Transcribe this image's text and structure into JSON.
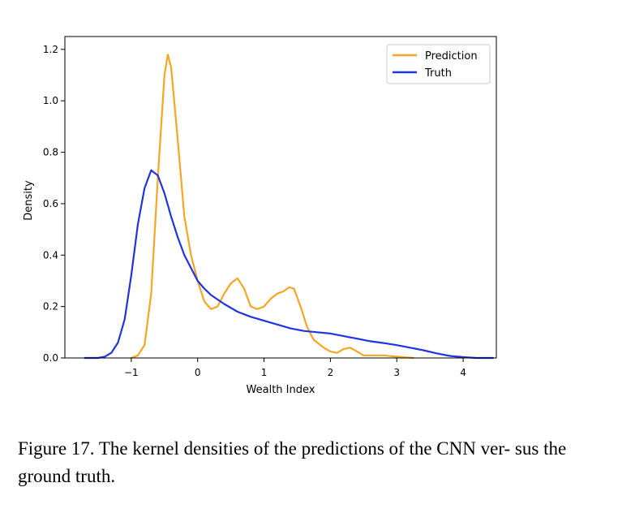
{
  "chart_data": {
    "type": "line",
    "xlabel": "Wealth Index",
    "ylabel": "Density",
    "xlim": [
      -2.0,
      4.5
    ],
    "ylim": [
      0,
      1.25
    ],
    "xticks": [
      -1,
      0,
      1,
      2,
      3,
      4
    ],
    "yticks": [
      0.0,
      0.2,
      0.4,
      0.6,
      0.8,
      1.0,
      1.2
    ],
    "xtick_labels": [
      "−1",
      "0",
      "1",
      "2",
      "3",
      "4"
    ],
    "ytick_labels": [
      "0.0",
      "0.2",
      "0.4",
      "0.6",
      "0.8",
      "1.0",
      "1.2"
    ],
    "legend_position": "top-right",
    "grid": false,
    "series": [
      {
        "name": "Prediction",
        "color": "#f5a623",
        "points": [
          [
            -1.0,
            0.0
          ],
          [
            -0.9,
            0.01
          ],
          [
            -0.8,
            0.05
          ],
          [
            -0.7,
            0.25
          ],
          [
            -0.6,
            0.7
          ],
          [
            -0.5,
            1.1
          ],
          [
            -0.45,
            1.18
          ],
          [
            -0.4,
            1.13
          ],
          [
            -0.3,
            0.85
          ],
          [
            -0.2,
            0.55
          ],
          [
            -0.1,
            0.4
          ],
          [
            0.0,
            0.3
          ],
          [
            0.1,
            0.22
          ],
          [
            0.2,
            0.19
          ],
          [
            0.3,
            0.2
          ],
          [
            0.4,
            0.25
          ],
          [
            0.5,
            0.29
          ],
          [
            0.6,
            0.31
          ],
          [
            0.7,
            0.27
          ],
          [
            0.8,
            0.2
          ],
          [
            0.9,
            0.19
          ],
          [
            1.0,
            0.2
          ],
          [
            1.1,
            0.23
          ],
          [
            1.2,
            0.25
          ],
          [
            1.3,
            0.26
          ],
          [
            1.38,
            0.275
          ],
          [
            1.45,
            0.27
          ],
          [
            1.55,
            0.2
          ],
          [
            1.65,
            0.12
          ],
          [
            1.75,
            0.07
          ],
          [
            1.9,
            0.04
          ],
          [
            2.0,
            0.025
          ],
          [
            2.1,
            0.02
          ],
          [
            2.2,
            0.035
          ],
          [
            2.3,
            0.04
          ],
          [
            2.4,
            0.025
          ],
          [
            2.5,
            0.01
          ],
          [
            2.8,
            0.01
          ],
          [
            3.0,
            0.005
          ],
          [
            3.25,
            0.0
          ]
        ]
      },
      {
        "name": "Truth",
        "color": "#1f34e0",
        "points": [
          [
            -1.7,
            0.0
          ],
          [
            -1.5,
            0.0
          ],
          [
            -1.4,
            0.005
          ],
          [
            -1.3,
            0.02
          ],
          [
            -1.2,
            0.06
          ],
          [
            -1.1,
            0.15
          ],
          [
            -1.0,
            0.32
          ],
          [
            -0.9,
            0.52
          ],
          [
            -0.8,
            0.66
          ],
          [
            -0.7,
            0.73
          ],
          [
            -0.6,
            0.71
          ],
          [
            -0.5,
            0.64
          ],
          [
            -0.4,
            0.55
          ],
          [
            -0.3,
            0.47
          ],
          [
            -0.2,
            0.4
          ],
          [
            -0.1,
            0.35
          ],
          [
            0.0,
            0.3
          ],
          [
            0.1,
            0.27
          ],
          [
            0.2,
            0.245
          ],
          [
            0.4,
            0.21
          ],
          [
            0.6,
            0.18
          ],
          [
            0.8,
            0.16
          ],
          [
            1.0,
            0.145
          ],
          [
            1.2,
            0.13
          ],
          [
            1.4,
            0.115
          ],
          [
            1.6,
            0.105
          ],
          [
            1.8,
            0.1
          ],
          [
            2.0,
            0.095
          ],
          [
            2.2,
            0.085
          ],
          [
            2.4,
            0.075
          ],
          [
            2.6,
            0.065
          ],
          [
            2.8,
            0.058
          ],
          [
            3.0,
            0.05
          ],
          [
            3.2,
            0.04
          ],
          [
            3.4,
            0.03
          ],
          [
            3.6,
            0.018
          ],
          [
            3.8,
            0.008
          ],
          [
            4.0,
            0.003
          ],
          [
            4.2,
            0.0
          ],
          [
            4.45,
            0.0
          ]
        ]
      }
    ]
  },
  "caption": {
    "text": "Figure 17. The kernel densities of the predictions of the CNN ver- sus the ground truth."
  }
}
